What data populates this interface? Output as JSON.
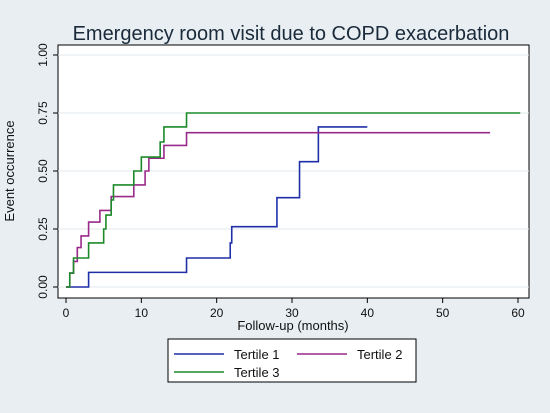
{
  "chart_data": {
    "type": "line",
    "title": "Emergency room visit due to COPD exacerbation",
    "xlabel": "Follow-up (months)",
    "ylabel": "Event occurrence",
    "xlim": [
      0,
      60
    ],
    "ylim": [
      0,
      1
    ],
    "xticks": [
      0,
      10,
      20,
      30,
      40,
      50,
      60
    ],
    "yticks": [
      0,
      0.25,
      0.5,
      0.75,
      1
    ],
    "ytick_labels": [
      "0.00",
      "0.25",
      "0.50",
      "0.75",
      "1.00"
    ],
    "grid": true,
    "legend_position": "bottom",
    "series": [
      {
        "name": "Tertile 1",
        "color": "#1f2fa8",
        "step": true,
        "x": [
          0,
          3,
          16,
          21.8,
          22,
          28,
          31,
          33.5,
          40
        ],
        "y": [
          0,
          0.063,
          0.125,
          0.19,
          0.26,
          0.385,
          0.54,
          0.69,
          0.69
        ]
      },
      {
        "name": "Tertile 2",
        "color": "#9a2a8a",
        "step": true,
        "x": [
          0,
          0.5,
          1,
          1.5,
          2,
          3,
          4.5,
          6,
          9,
          10.5,
          11,
          13,
          16,
          56.3
        ],
        "y": [
          0,
          0.06,
          0.11,
          0.17,
          0.22,
          0.28,
          0.33,
          0.39,
          0.44,
          0.5,
          0.555,
          0.61,
          0.665,
          0.665
        ]
      },
      {
        "name": "Tertile 3",
        "color": "#1c8a2a",
        "step": true,
        "x": [
          0,
          0.5,
          1,
          3,
          5,
          5.3,
          6,
          6.3,
          6.6,
          9,
          10,
          12.5,
          13,
          16,
          60.3
        ],
        "y": [
          0,
          0.06,
          0.125,
          0.19,
          0.25,
          0.31,
          0.375,
          0.44,
          0.44,
          0.5,
          0.56,
          0.625,
          0.69,
          0.75,
          0.75
        ]
      }
    ]
  }
}
